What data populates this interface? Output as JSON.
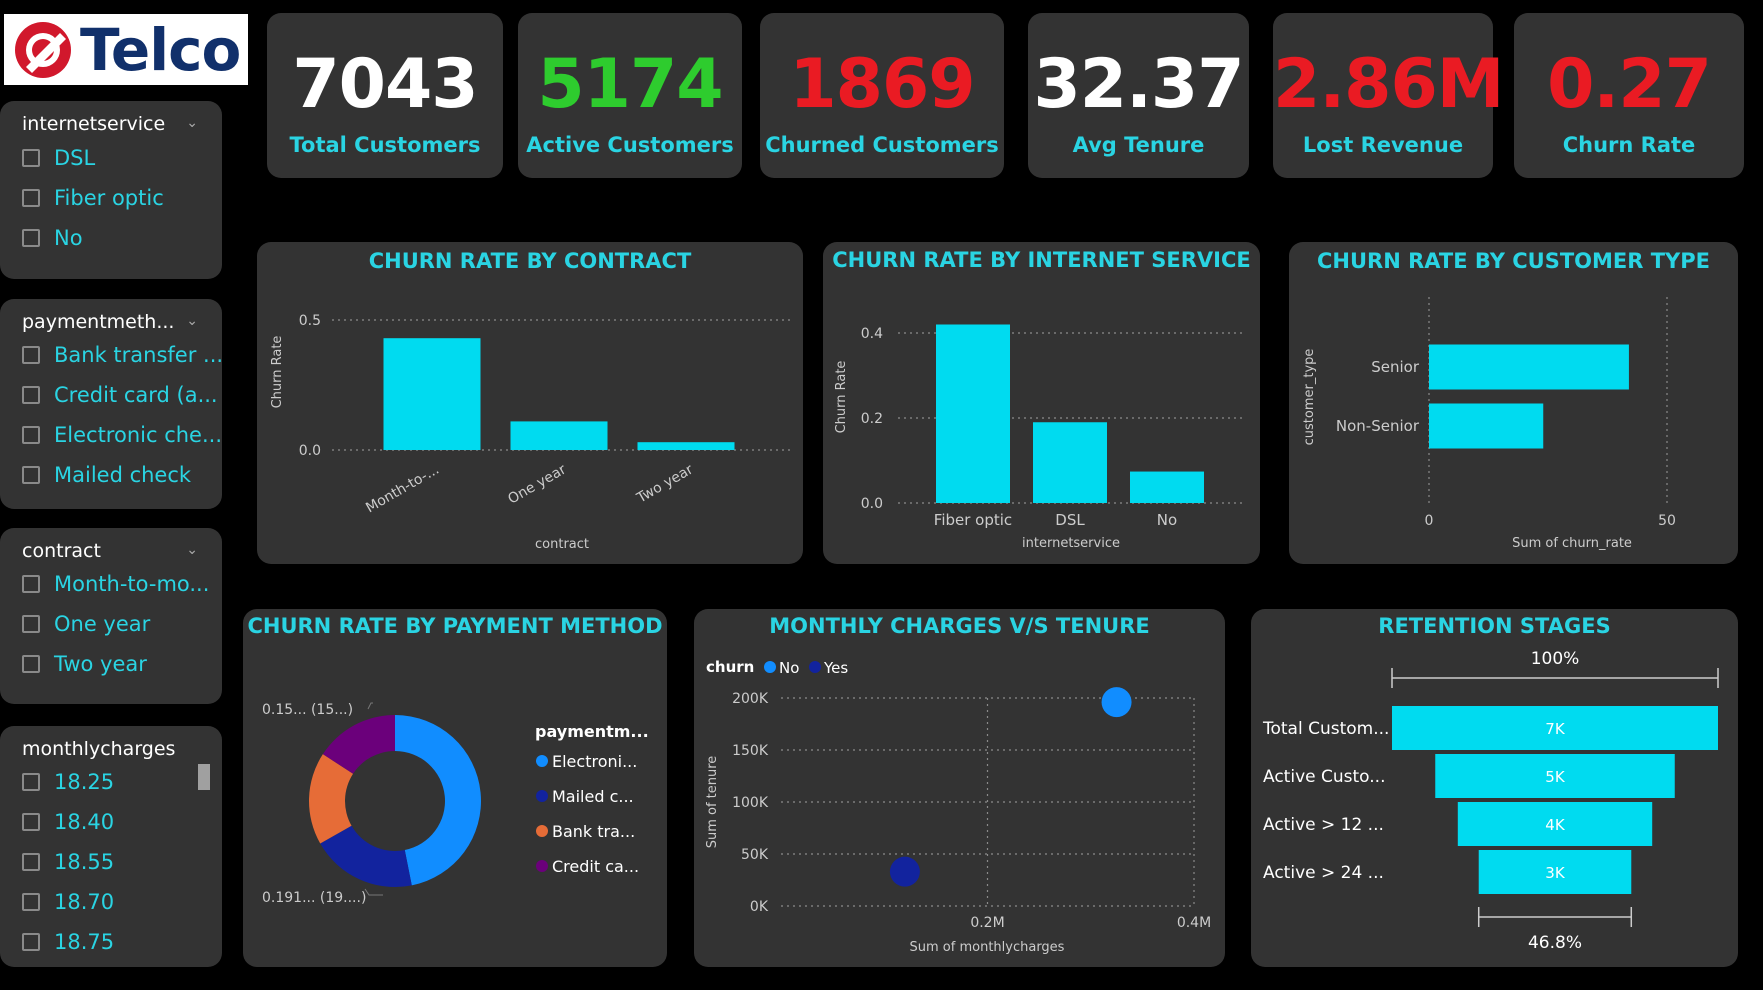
{
  "logo": {
    "text": "Telco"
  },
  "kpis": [
    {
      "value": "7043",
      "label": "Total Customers",
      "color": "#ffffff"
    },
    {
      "value": "5174",
      "label": "Active Customers",
      "color": "#2ecc2e"
    },
    {
      "value": "1869",
      "label": "Churned Customers",
      "color": "#ea1b23"
    },
    {
      "value": "32.37",
      "label": "Avg Tenure",
      "color": "#ffffff"
    },
    {
      "value": "2.86M",
      "label": "Lost Revenue",
      "color": "#ea1b23"
    },
    {
      "value": "0.27",
      "label": "Churn Rate",
      "color": "#ea1b23"
    }
  ],
  "slicers": {
    "internet": {
      "title": "internetservice",
      "options": [
        "DSL",
        "Fiber optic",
        "No"
      ]
    },
    "payment": {
      "title": "paymentmeth...",
      "options": [
        "Bank transfer ...",
        "Credit card (a...",
        "Electronic che...",
        "Mailed check"
      ]
    },
    "contract": {
      "title": "contract",
      "options": [
        "Month-to-mo...",
        "One year",
        "Two year"
      ]
    },
    "monthly": {
      "title": "monthlycharges",
      "options": [
        "18.25",
        "18.40",
        "18.55",
        "18.70",
        "18.75"
      ]
    }
  },
  "chart_data": [
    {
      "type": "bar",
      "title": "CHURN RATE BY CONTRACT",
      "categories": [
        "Month-to-...",
        "One year",
        "Two year"
      ],
      "values": [
        0.43,
        0.11,
        0.03
      ],
      "xlabel": "contract",
      "ylabel": "Churn Rate",
      "ylim": [
        0,
        0.5
      ],
      "ticks": [
        "0.0",
        "0.5"
      ]
    },
    {
      "type": "bar",
      "title": "CHURN RATE BY INTERNET SERVICE",
      "categories": [
        "Fiber optic",
        "DSL",
        "No"
      ],
      "values": [
        0.42,
        0.19,
        0.074
      ],
      "xlabel": "internetservice",
      "ylabel": "Churn Rate",
      "ylim": [
        0,
        0.4
      ],
      "ticks": [
        "0.0",
        "0.2",
        "0.4"
      ]
    },
    {
      "type": "bar",
      "orientation": "horizontal",
      "title": "CHURN RATE BY CUSTOMER TYPE",
      "categories": [
        "Senior",
        "Non-Senior"
      ],
      "values": [
        42,
        24
      ],
      "xlabel": "Sum of churn_rate",
      "ylabel": "customer_type",
      "xlim": [
        0,
        50
      ],
      "ticks": [
        "0",
        "50"
      ]
    },
    {
      "type": "pie",
      "title": "CHURN RATE BY PAYMENT METHOD",
      "legend_title": "paymentm...",
      "slices": [
        {
          "label": "Electroni...",
          "value": 0.45,
          "color": "#118dff"
        },
        {
          "label": "Mailed c...",
          "value": 0.191,
          "color": "#12239e"
        },
        {
          "label": "Bank tra...",
          "value": 0.167,
          "color": "#e66c37"
        },
        {
          "label": "Credit ca...",
          "value": 0.152,
          "color": "#6b007b"
        }
      ],
      "annotations": [
        "0.15... (15...)",
        "0.191... (19....)"
      ]
    },
    {
      "type": "scatter",
      "title": "MONTHLY CHARGES V/S TENURE",
      "legend_title": "churn",
      "series": [
        {
          "name": "No",
          "color": "#118dff",
          "points": [
            [
              0.325,
              196000
            ]
          ]
        },
        {
          "name": "Yes",
          "color": "#12239e",
          "points": [
            [
              0.12,
              33000
            ]
          ]
        }
      ],
      "xlabel": "Sum of monthlycharges",
      "ylabel": "Sum of tenure",
      "xlim": [
        0,
        0.4
      ],
      "ylim": [
        0,
        200000
      ],
      "xticks": [
        "0.2M",
        "0.4M"
      ],
      "yticks": [
        "0K",
        "50K",
        "100K",
        "150K",
        "200K"
      ]
    },
    {
      "type": "funnel",
      "title": "RETENTION STAGES",
      "stages": [
        {
          "label": "Total Custom...",
          "value": 7043,
          "text": "7K"
        },
        {
          "label": "Active Custo...",
          "value": 5174,
          "text": "5K"
        },
        {
          "label": "Active > 12 ...",
          "value": 4200,
          "text": "4K"
        },
        {
          "label": "Active > 24 ...",
          "value": 3296,
          "text": "3K"
        }
      ],
      "top_pct": "100%",
      "bottom_pct": "46.8%"
    }
  ]
}
